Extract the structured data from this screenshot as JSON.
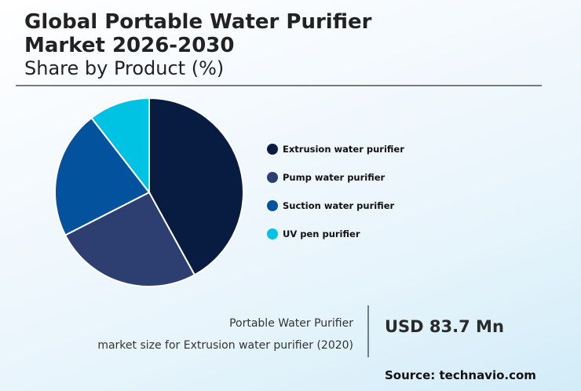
{
  "header": {
    "title_line1": "Global Portable Water Purifier",
    "title_line2": "Market 2026-2030",
    "subtitle": "Share by Product (%)"
  },
  "legend": [
    {
      "label": "Extrusion water purifier",
      "color": "#081c42"
    },
    {
      "label": "Pump water purifier",
      "color": "#2c3f70"
    },
    {
      "label": "Suction water purifier",
      "color": "#03529e"
    },
    {
      "label": "UV pen purifier",
      "color": "#00c3e3"
    }
  ],
  "stat": {
    "desc_line1": "Portable Water Purifier",
    "desc_line2": "market size for Extrusion water purifier (2020)",
    "value": "USD 83.7 Mn"
  },
  "source": "Source: technavio.com",
  "chart_data": {
    "type": "pie",
    "title": "Global Portable Water Purifier Market 2026-2030",
    "subtitle": "Share by Product (%)",
    "categories": [
      "Extrusion water purifier",
      "Pump water purifier",
      "Suction water purifier",
      "UV pen purifier"
    ],
    "values": [
      42,
      25.5,
      22,
      10.5
    ],
    "colors": [
      "#081c42",
      "#2c3f70",
      "#03529e",
      "#00c3e3"
    ],
    "start_angle": "12 o'clock, clockwise",
    "legend_position": "right",
    "data_labels": false
  }
}
